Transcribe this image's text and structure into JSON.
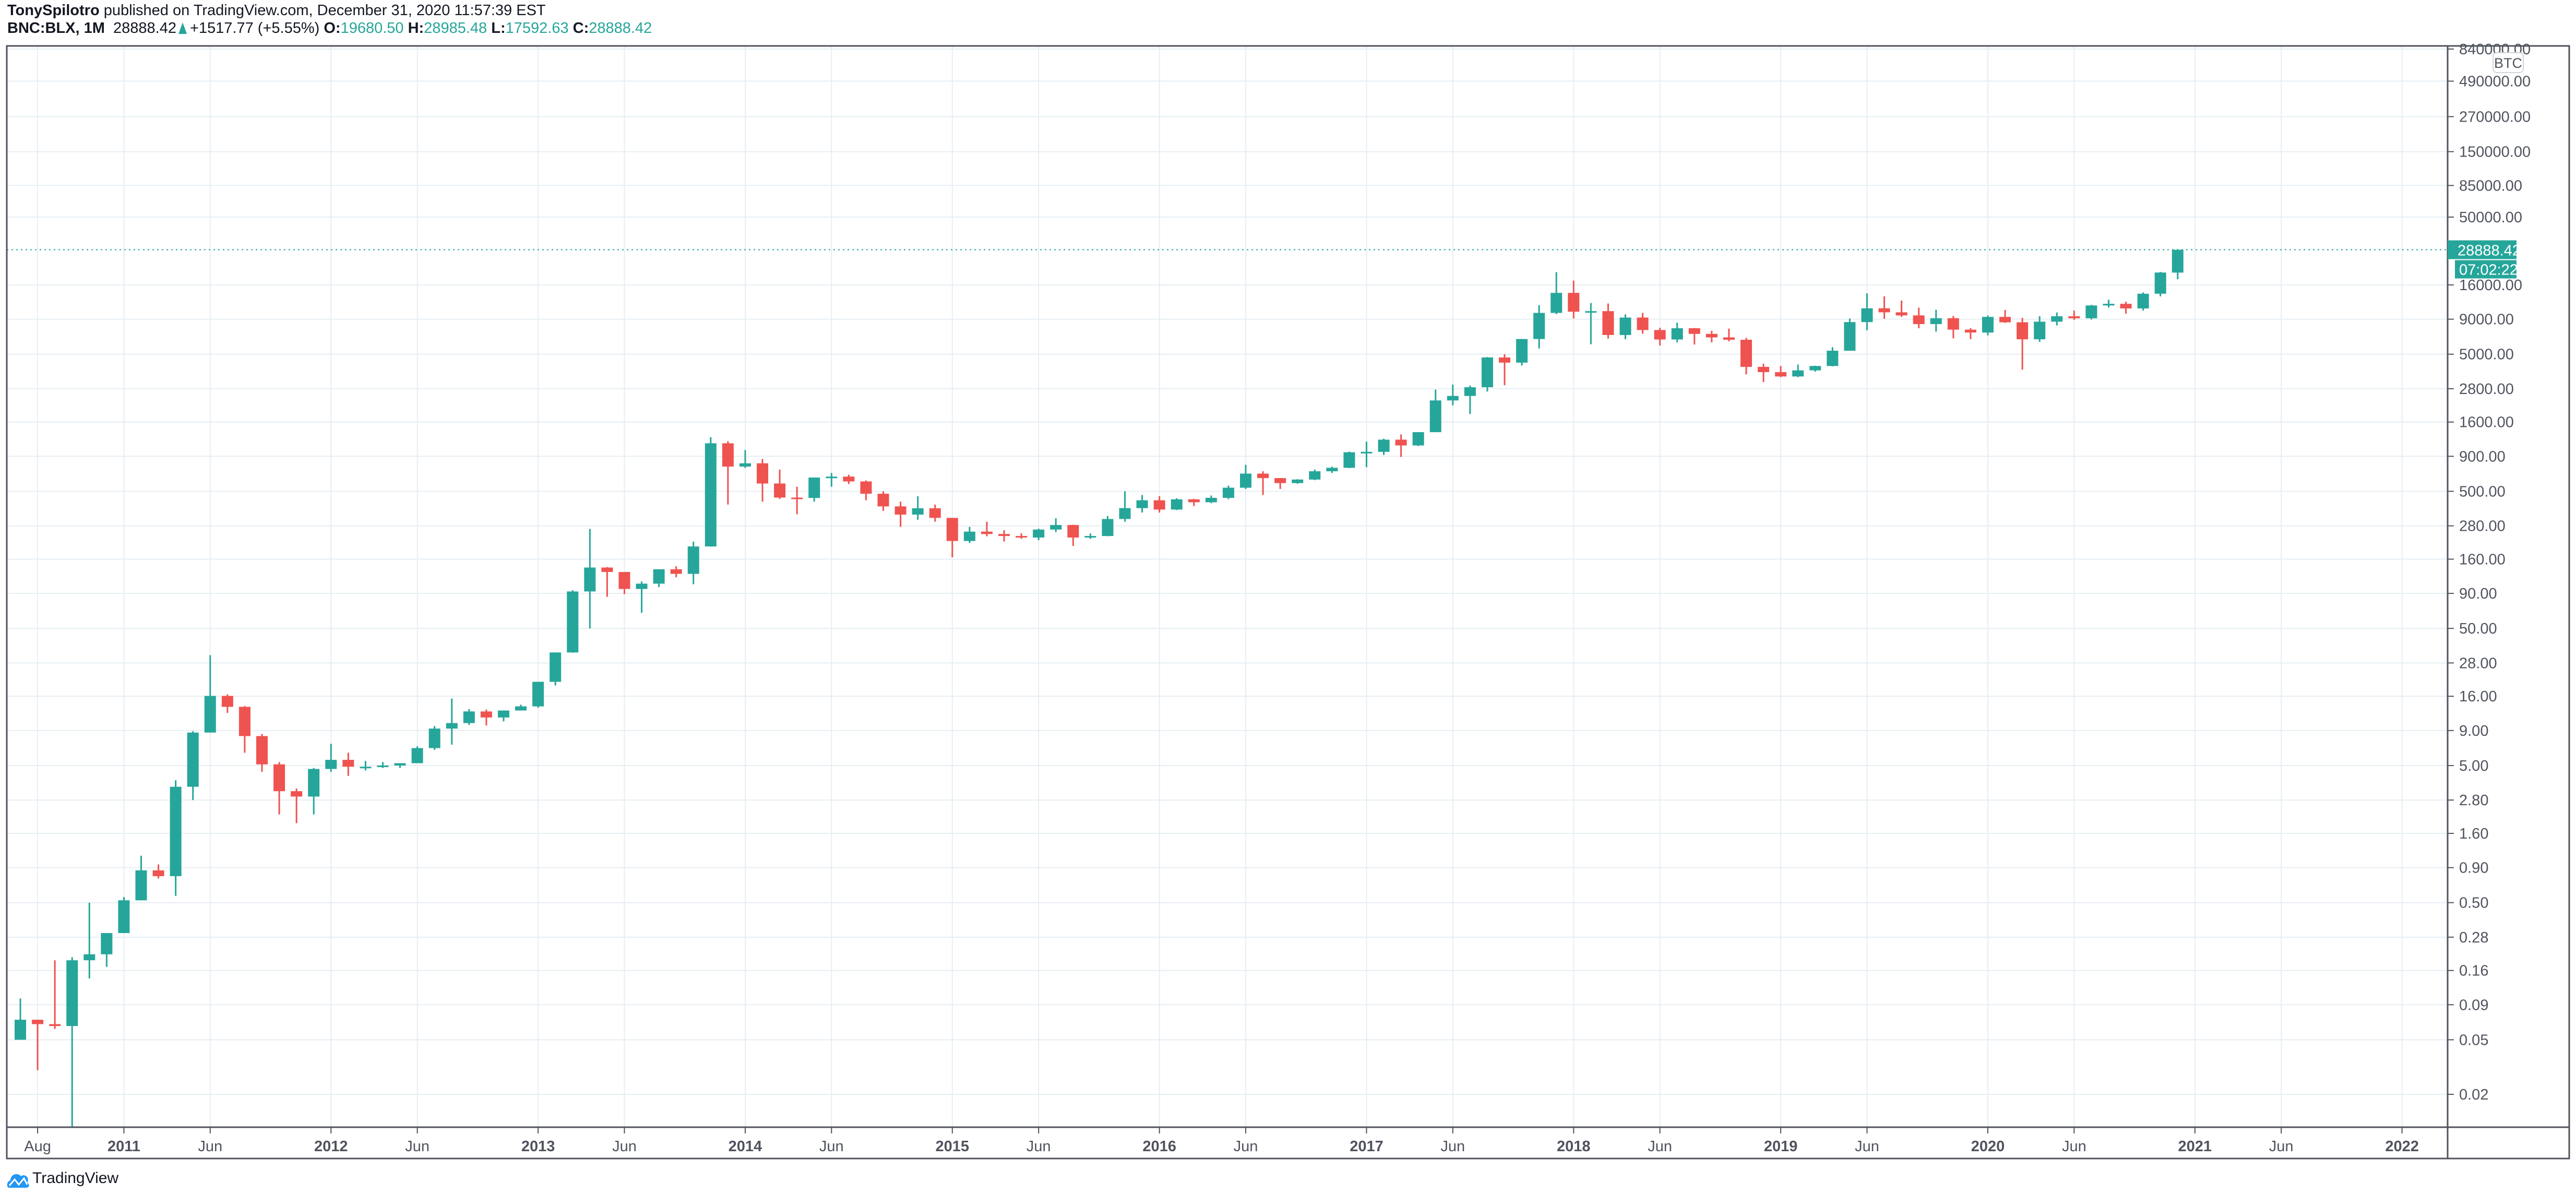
{
  "header": {
    "author": "TonySpilotro",
    "published": " published on TradingView.com, December 31, 2020 11:57:39 EST",
    "symbol": "BNC:BLX, 1M",
    "last": "28888.42",
    "change": "+1517.77 (+5.55%)",
    "o_label": "O:",
    "o": "19680.50",
    "h_label": "H:",
    "h": "28985.48",
    "l_label": "L:",
    "l": "17592.63",
    "c_label": "C:",
    "c": "28888.42"
  },
  "colors": {
    "up": "#26a69a",
    "down": "#ef5350",
    "grid": "#e6eef3",
    "axis": "#50535e"
  },
  "price_axis": {
    "currency_badge": "BTC",
    "last_price_label": "28888.42",
    "countdown": "07:02:22"
  },
  "footer": {
    "brand": "TradingView"
  },
  "chart_data": {
    "type": "candlestick",
    "title": "BNC:BLX, 1M",
    "scale": "log",
    "ylim": [
      0.012,
      1000000
    ],
    "grid": true,
    "start_month": "2010-07",
    "interval": "1M",
    "y_ticks": [
      "840000.00",
      "490000.00",
      "270000.00",
      "150000.00",
      "85000.00",
      "50000.00",
      "16000.00",
      "9000.00",
      "5000.00",
      "2800.00",
      "1600.00",
      "900.00",
      "500.00",
      "280.00",
      "160.00",
      "90.00",
      "50.00",
      "28.00",
      "16.00",
      "9.00",
      "5.00",
      "2.80",
      "1.60",
      "0.90",
      "0.50",
      "0.28",
      "0.16",
      "0.09",
      "0.05",
      "0.02"
    ],
    "x_ticks": [
      {
        "label": "Aug",
        "month": "2010-08",
        "bold": false
      },
      {
        "label": "2011",
        "month": "2011-01",
        "bold": true
      },
      {
        "label": "Jun",
        "month": "2011-06",
        "bold": false
      },
      {
        "label": "2012",
        "month": "2012-01",
        "bold": true
      },
      {
        "label": "Jun",
        "month": "2012-06",
        "bold": false
      },
      {
        "label": "2013",
        "month": "2013-01",
        "bold": true
      },
      {
        "label": "Jun",
        "month": "2013-06",
        "bold": false
      },
      {
        "label": "2014",
        "month": "2014-01",
        "bold": true
      },
      {
        "label": "Jun",
        "month": "2014-06",
        "bold": false
      },
      {
        "label": "2015",
        "month": "2015-01",
        "bold": true
      },
      {
        "label": "Jun",
        "month": "2015-06",
        "bold": false
      },
      {
        "label": "2016",
        "month": "2016-01",
        "bold": true
      },
      {
        "label": "Jun",
        "month": "2016-06",
        "bold": false
      },
      {
        "label": "2017",
        "month": "2017-01",
        "bold": true
      },
      {
        "label": "Jun",
        "month": "2017-06",
        "bold": false
      },
      {
        "label": "2018",
        "month": "2018-01",
        "bold": true
      },
      {
        "label": "Jun",
        "month": "2018-06",
        "bold": false
      },
      {
        "label": "2019",
        "month": "2019-01",
        "bold": true
      },
      {
        "label": "Jun",
        "month": "2019-06",
        "bold": false
      },
      {
        "label": "2020",
        "month": "2020-01",
        "bold": true
      },
      {
        "label": "Jun",
        "month": "2020-06",
        "bold": false
      },
      {
        "label": "2021",
        "month": "2021-01",
        "bold": true
      },
      {
        "label": "Jun",
        "month": "2021-06",
        "bold": false
      },
      {
        "label": "2022",
        "month": "2022-01",
        "bold": true
      }
    ],
    "ohlc_fields": [
      "open",
      "high",
      "low",
      "close"
    ],
    "ohlc": [
      [
        0.05,
        0.1,
        0.05,
        0.07
      ],
      [
        0.07,
        0.07,
        0.03,
        0.065
      ],
      [
        0.065,
        0.19,
        0.06,
        0.063
      ],
      [
        0.063,
        0.2,
        0.01,
        0.19
      ],
      [
        0.19,
        0.5,
        0.14,
        0.21
      ],
      [
        0.21,
        0.3,
        0.17,
        0.3
      ],
      [
        0.3,
        0.55,
        0.3,
        0.52
      ],
      [
        0.52,
        1.1,
        0.52,
        0.86
      ],
      [
        0.86,
        0.95,
        0.75,
        0.78
      ],
      [
        0.78,
        3.9,
        0.56,
        3.5
      ],
      [
        3.5,
        8.9,
        2.8,
        8.7
      ],
      [
        8.7,
        31.9,
        8.7,
        16.1
      ],
      [
        16.1,
        16.5,
        12.1,
        13.4
      ],
      [
        13.4,
        13.6,
        6.2,
        8.2
      ],
      [
        8.2,
        8.5,
        4.5,
        5.1
      ],
      [
        5.1,
        5.3,
        2.2,
        3.25
      ],
      [
        3.25,
        3.4,
        1.9,
        2.97
      ],
      [
        2.97,
        4.8,
        2.2,
        4.72
      ],
      [
        4.72,
        7.2,
        4.5,
        5.5
      ],
      [
        5.5,
        6.2,
        4.2,
        4.9
      ],
      [
        4.9,
        5.4,
        4.6,
        4.9
      ],
      [
        4.9,
        5.3,
        4.8,
        5.0
      ],
      [
        5.0,
        5.2,
        4.8,
        5.2
      ],
      [
        5.2,
        6.9,
        5.2,
        6.7
      ],
      [
        6.7,
        9.7,
        6.5,
        9.3
      ],
      [
        9.3,
        15.4,
        7.1,
        10.2
      ],
      [
        10.2,
        12.9,
        9.9,
        12.4
      ],
      [
        12.4,
        12.8,
        9.8,
        11.2
      ],
      [
        11.2,
        12.6,
        10.5,
        12.6
      ],
      [
        12.6,
        13.9,
        12.6,
        13.5
      ],
      [
        13.5,
        20.4,
        13.2,
        20.4
      ],
      [
        20.4,
        33.4,
        19.2,
        33.4
      ],
      [
        33.4,
        95,
        33.2,
        93
      ],
      [
        93,
        266,
        50,
        139
      ],
      [
        139,
        140,
        85,
        129
      ],
      [
        129,
        129,
        89,
        97
      ],
      [
        97,
        110,
        65,
        106
      ],
      [
        106,
        135,
        100,
        135
      ],
      [
        135,
        142,
        118,
        125
      ],
      [
        125,
        215,
        105,
        198
      ],
      [
        198,
        1242,
        198,
        1120
      ],
      [
        1120,
        1160,
        400,
        757
      ],
      [
        757,
        1000,
        740,
        800
      ],
      [
        800,
        860,
        420,
        570
      ],
      [
        570,
        720,
        440,
        450
      ],
      [
        450,
        540,
        340,
        447
      ],
      [
        447,
        630,
        420,
        630
      ],
      [
        630,
        680,
        540,
        640
      ],
      [
        640,
        660,
        565,
        590
      ],
      [
        590,
        600,
        430,
        480
      ],
      [
        480,
        500,
        360,
        388
      ],
      [
        388,
        420,
        275,
        338
      ],
      [
        338,
        460,
        310,
        376
      ],
      [
        376,
        400,
        300,
        320
      ],
      [
        320,
        320,
        165,
        217
      ],
      [
        217,
        275,
        210,
        254
      ],
      [
        254,
        300,
        235,
        244
      ],
      [
        244,
        260,
        215,
        236
      ],
      [
        236,
        247,
        225,
        230
      ],
      [
        230,
        267,
        220,
        263
      ],
      [
        263,
        318,
        252,
        284
      ],
      [
        284,
        285,
        200,
        230
      ],
      [
        230,
        246,
        225,
        236
      ],
      [
        236,
        330,
        235,
        314
      ],
      [
        314,
        500,
        300,
        377
      ],
      [
        377,
        470,
        350,
        430
      ],
      [
        430,
        460,
        350,
        368
      ],
      [
        368,
        445,
        365,
        437
      ],
      [
        437,
        440,
        390,
        416
      ],
      [
        416,
        466,
        410,
        448
      ],
      [
        448,
        550,
        438,
        531
      ],
      [
        531,
        780,
        520,
        673
      ],
      [
        673,
        700,
        470,
        624
      ],
      [
        624,
        625,
        520,
        574
      ],
      [
        574,
        612,
        567,
        609
      ],
      [
        609,
        720,
        603,
        700
      ],
      [
        700,
        756,
        680,
        742
      ],
      [
        742,
        975,
        738,
        963
      ],
      [
        963,
        1150,
        750,
        970
      ],
      [
        970,
        1210,
        920,
        1190
      ],
      [
        1190,
        1300,
        890,
        1080
      ],
      [
        1080,
        1350,
        1070,
        1350
      ],
      [
        1350,
        2760,
        1350,
        2300
      ],
      [
        2300,
        3000,
        2120,
        2480
      ],
      [
        2480,
        2950,
        1830,
        2870
      ],
      [
        2870,
        4760,
        2670,
        4730
      ],
      [
        4730,
        5000,
        2970,
        4340
      ],
      [
        4340,
        6460,
        4130,
        6450
      ],
      [
        6450,
        11400,
        5500,
        10000
      ],
      [
        10000,
        19800,
        9800,
        14000
      ],
      [
        14000,
        17200,
        9100,
        10200
      ],
      [
        10200,
        11800,
        5900,
        10300
      ],
      [
        10300,
        11700,
        6500,
        6900
      ],
      [
        6900,
        9750,
        6430,
        9250
      ],
      [
        9250,
        10000,
        7050,
        7500
      ],
      [
        7500,
        7780,
        5780,
        6400
      ],
      [
        6400,
        8500,
        6100,
        7730
      ],
      [
        7730,
        7760,
        5880,
        7030
      ],
      [
        7030,
        7400,
        6100,
        6630
      ],
      [
        6630,
        7680,
        6200,
        6370
      ],
      [
        6370,
        6580,
        3560,
        4040
      ],
      [
        4040,
        4260,
        3130,
        3700
      ],
      [
        3700,
        4100,
        3400,
        3440
      ],
      [
        3440,
        4200,
        3400,
        3810
      ],
      [
        3810,
        4120,
        3730,
        4100
      ],
      [
        4100,
        5620,
        4080,
        5300
      ],
      [
        5300,
        9100,
        5300,
        8570
      ],
      [
        8570,
        13880,
        7480,
        10800
      ],
      [
        10800,
        13200,
        9050,
        10100
      ],
      [
        10100,
        12300,
        9350,
        9590
      ],
      [
        9590,
        10920,
        7730,
        8290
      ],
      [
        8290,
        10540,
        7300,
        9150
      ],
      [
        9150,
        9500,
        6520,
        7550
      ],
      [
        7550,
        7750,
        6430,
        7190
      ],
      [
        7190,
        9580,
        6850,
        9350
      ],
      [
        9350,
        10500,
        8450,
        8540
      ],
      [
        8540,
        9200,
        3850,
        6420
      ],
      [
        6420,
        9470,
        6150,
        8630
      ],
      [
        8630,
        10070,
        8100,
        9450
      ],
      [
        9450,
        10390,
        8900,
        9140
      ],
      [
        9140,
        11450,
        8950,
        11330
      ],
      [
        11330,
        12470,
        10940,
        11650
      ],
      [
        11650,
        12070,
        9860,
        10780
      ],
      [
        10780,
        14100,
        10400,
        13800
      ],
      [
        13800,
        19900,
        13200,
        19700
      ],
      [
        19680.5,
        28985.48,
        17592.63,
        28888.42
      ]
    ]
  }
}
